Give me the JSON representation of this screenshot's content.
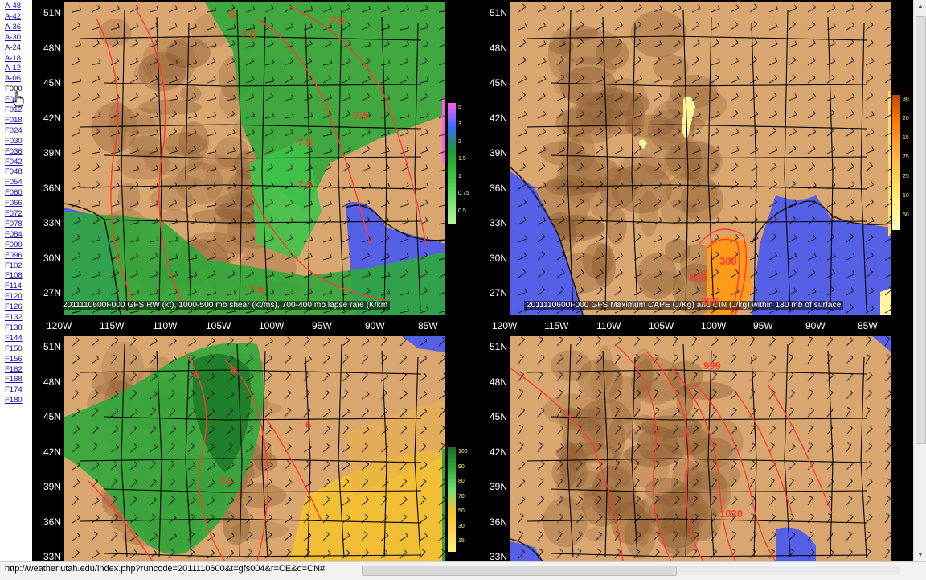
{
  "sidebar": {
    "links": [
      "A-48",
      "A-42",
      "A-36",
      "A-30",
      "A-24",
      "A-18",
      "A-12",
      "A-06",
      "F000",
      "F006",
      "F012",
      "F018",
      "F024",
      "F030",
      "F036",
      "F042",
      "F048",
      "F054",
      "F060",
      "F066",
      "F072",
      "F078",
      "F084",
      "F090",
      "F096",
      "F102",
      "F108",
      "F114",
      "F120",
      "F126",
      "F132",
      "F138",
      "F144",
      "F150",
      "F156",
      "F162",
      "F168",
      "F174",
      "F180"
    ],
    "current": "F000"
  },
  "axes": {
    "lat_labels": [
      "51N",
      "48N",
      "45N",
      "42N",
      "39N",
      "36N",
      "33N",
      "30N",
      "27N"
    ],
    "lat_labels_bottom": [
      "51N",
      "48N",
      "45N",
      "42N",
      "39N",
      "36N",
      "33N"
    ],
    "lon_labels": [
      "120W",
      "115W",
      "110W",
      "105W",
      "100W",
      "95W",
      "90W",
      "85W"
    ]
  },
  "panels": {
    "top_left": {
      "caption": "2011110600F000 GFS RW (kt), 1000-500 mb shear (kt/ms), 700-400 mb lapse rate (K/km",
      "colorbar": [
        "5",
        "3",
        "2",
        "1.5",
        "1",
        "0.75",
        "0.5"
      ],
      "contour_labels": [
        "7.5",
        "7.5",
        "7.5",
        "7.5",
        "7.5",
        "7.5",
        "6"
      ]
    },
    "top_right": {
      "caption": "2011110600F000 GFS Maximum CAPE (J/Kg) and CIN (J/kg) within 180 mb of surface",
      "colorbar": [
        "30",
        "20",
        "15",
        "75",
        "25",
        "10",
        "50"
      ],
      "contour_labels": [
        "300",
        "600",
        "300"
      ]
    },
    "bottom_left": {
      "colorbar": [
        "100",
        "90",
        "80",
        "70",
        "50",
        "30",
        "15"
      ],
      "contour_labels": [
        "6",
        "6",
        "6",
        "12"
      ]
    },
    "bottom_right": {
      "contour_labels": [
        "999",
        "1020"
      ]
    }
  },
  "status": {
    "url": "http://weather.utah.edu/index.php?runcode=2011110600&t=gfs004&r=CE&d=CN#"
  },
  "colors": {
    "terrain": "#d9a66f",
    "terrain_dark": "#8a5a30",
    "ocean": "#5560e6",
    "green": "#2fa83a",
    "contour": "#ff3b30"
  }
}
